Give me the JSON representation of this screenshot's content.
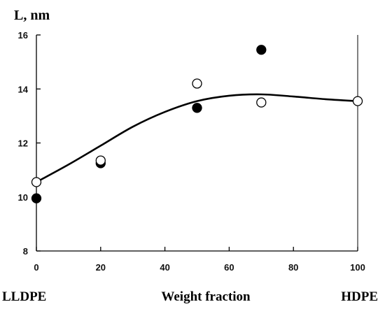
{
  "chart_data": {
    "type": "scatter",
    "ylabel": "L, nm",
    "xlabel": "Weight fraction",
    "left_label": "LLDPE",
    "right_label": "HDPE",
    "xlim": [
      0,
      100
    ],
    "ylim": [
      8,
      16
    ],
    "x_ticks": [
      0,
      20,
      40,
      60,
      80,
      100
    ],
    "y_ticks": [
      8,
      10,
      12,
      14,
      16
    ],
    "grid": false,
    "series": [
      {
        "marker": "filled-circle",
        "x": [
          0,
          20,
          50,
          70
        ],
        "y": [
          9.95,
          11.25,
          13.3,
          15.45
        ]
      },
      {
        "marker": "open-circle",
        "x": [
          0,
          20,
          50,
          70,
          100
        ],
        "y": [
          10.55,
          11.35,
          14.2,
          13.5,
          13.55
        ]
      }
    ],
    "fit_curve": {
      "x": [
        0,
        10,
        20,
        30,
        40,
        50,
        60,
        70,
        80,
        90,
        100
      ],
      "y": [
        10.55,
        11.2,
        11.9,
        12.6,
        13.15,
        13.55,
        13.75,
        13.8,
        13.72,
        13.62,
        13.55
      ]
    },
    "colors": {
      "axis": "#000000",
      "marker": "#000000",
      "background": "#ffffff"
    }
  }
}
